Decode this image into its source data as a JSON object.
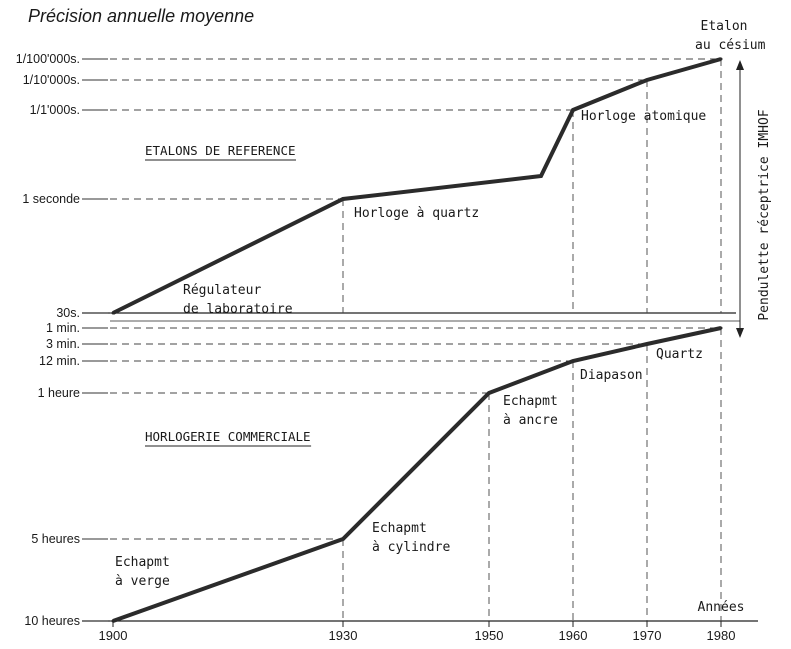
{
  "title": "Précision annuelle moyenne",
  "chart_data": [
    {
      "panel": "top",
      "type": "line",
      "section_label": "ETALONS DE REFERENCE",
      "y_ticks": [
        "30s.",
        "1 seconde",
        "1/1'000s.",
        "1/10'000s.",
        "1/100'000s."
      ],
      "side_label": "Pendulette réceptrice IMHOF",
      "x": [
        1900,
        1930,
        1956,
        1960,
        1970,
        1980
      ],
      "y": [
        "30s.",
        "1 seconde",
        "",
        "1/1'000s.",
        "1/10'000s.",
        "1/100'000s."
      ],
      "annotations": [
        "Régulateur",
        "de laboratoire",
        "Horloge à quartz",
        "Horloge atomique",
        "Etalon",
        "au césium"
      ]
    },
    {
      "panel": "bottom",
      "type": "line",
      "section_label": "HORLOGERIE COMMERCIALE",
      "y_ticks": [
        "10 heures",
        "5 heures",
        "1 heure",
        "12 min.",
        "3 min.",
        "1 min."
      ],
      "x": [
        1900,
        1930,
        1950,
        1960,
        1970,
        1980
      ],
      "y": [
        "10 heures",
        "5 heures",
        "1 heure",
        "12 min.",
        "3 min.",
        "1 min."
      ],
      "annotations": [
        "Echapmt",
        "à verge",
        "Echapmt",
        "à cylindre",
        "Echapmt",
        "à ancre",
        "Diapason",
        "Quartz"
      ]
    }
  ],
  "x_ticks": [
    "1900",
    "1930",
    "1950",
    "1960",
    "1970",
    "1980"
  ],
  "x_axis_label": "Années"
}
